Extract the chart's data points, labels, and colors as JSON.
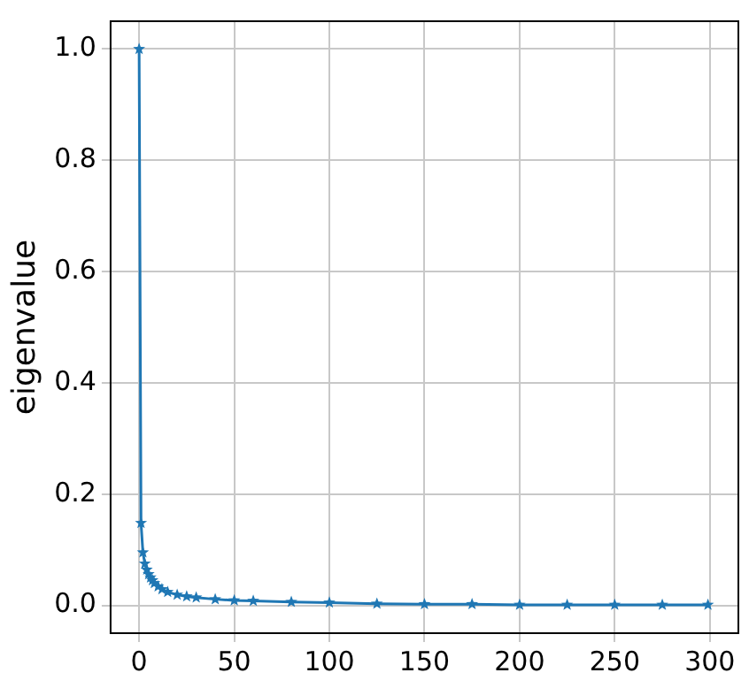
{
  "chart_data": {
    "type": "line",
    "ylabel": "eigenvalue",
    "color": "#1f77b4",
    "marker": "star",
    "line_style": "solid",
    "grid": true,
    "legend": false,
    "x": [
      0,
      1,
      2,
      3,
      4,
      5,
      6,
      7,
      8,
      10,
      12,
      15,
      20,
      25,
      30,
      40,
      50,
      60,
      80,
      100,
      125,
      150,
      175,
      200,
      225,
      250,
      275,
      299
    ],
    "values": [
      1.0,
      0.148,
      0.095,
      0.075,
      0.064,
      0.056,
      0.05,
      0.045,
      0.04,
      0.034,
      0.029,
      0.024,
      0.019,
      0.016,
      0.014,
      0.011,
      0.009,
      0.008,
      0.006,
      0.005,
      0.003,
      0.002,
      0.002,
      0.001,
      0.001,
      0.001,
      0.001,
      0.001
    ],
    "xlim": [
      -15,
      315
    ],
    "xticks": [
      0,
      50,
      100,
      150,
      200,
      250,
      300
    ],
    "ylim": [
      -0.05,
      1.05
    ],
    "yticks": [
      {
        "value": 0,
        "label": "0.0"
      },
      {
        "value": 0.2,
        "label": "0.2"
      },
      {
        "value": 0.4,
        "label": "0.4"
      },
      {
        "value": 0.6,
        "label": "0.6"
      },
      {
        "value": 0.8,
        "label": "0.8"
      },
      {
        "value": 1.0,
        "label": "1.0"
      }
    ]
  }
}
